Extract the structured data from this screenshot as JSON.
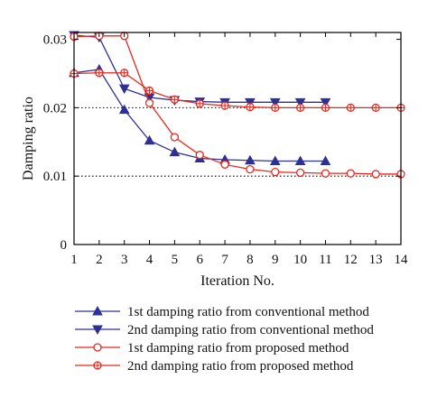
{
  "chart_data": {
    "type": "line",
    "xlabel": "Iteration No.",
    "ylabel": "Damping ratio",
    "xlim": [
      1,
      14
    ],
    "ylim": [
      0,
      0.031
    ],
    "x_ticks": [
      "1",
      "2",
      "3",
      "4",
      "5",
      "6",
      "7",
      "8",
      "9",
      "10",
      "11",
      "12",
      "13",
      "14"
    ],
    "y_ticks": [
      "0",
      "0.01",
      "0.02",
      "0.03"
    ],
    "reference_lines": [
      0.01,
      0.02
    ],
    "grid": false,
    "legend_position": "bottom",
    "colors": {
      "conventional": "#2e3192",
      "proposed": "#e8281e",
      "reference": "#000000"
    },
    "series": [
      {
        "name": "1st damping ratio from conventional method",
        "marker": "triangle-up",
        "x": [
          1,
          2,
          3,
          4,
          5,
          6,
          7,
          8,
          9,
          10,
          11
        ],
        "values": [
          0.0251,
          0.0256,
          0.0197,
          0.0152,
          0.0135,
          0.0126,
          0.0124,
          0.0123,
          0.0122,
          0.0122,
          0.0122
        ]
      },
      {
        "name": "2nd damping ratio from conventional method",
        "marker": "triangle-down",
        "x": [
          1,
          2,
          3,
          4,
          5,
          6,
          7,
          8,
          9,
          10,
          11
        ],
        "values": [
          0.0306,
          0.0303,
          0.0228,
          0.0215,
          0.0211,
          0.0209,
          0.0208,
          0.0208,
          0.0208,
          0.0208,
          0.0208
        ]
      },
      {
        "name": "1st damping ratio from proposed method",
        "marker": "circle",
        "x": [
          1,
          2,
          3,
          4,
          5,
          6,
          7,
          8,
          9,
          10,
          11,
          12,
          13,
          14
        ],
        "values": [
          0.0304,
          0.0305,
          0.0305,
          0.0207,
          0.0157,
          0.0131,
          0.0117,
          0.011,
          0.0106,
          0.0105,
          0.0104,
          0.0104,
          0.0103,
          0.0103
        ]
      },
      {
        "name": "2nd damping ratio from proposed method",
        "marker": "circle-cross",
        "x": [
          1,
          2,
          3,
          4,
          5,
          6,
          7,
          8,
          9,
          10,
          11,
          12,
          13,
          14
        ],
        "values": [
          0.025,
          0.0251,
          0.0251,
          0.0225,
          0.0212,
          0.0206,
          0.0203,
          0.0201,
          0.02,
          0.02,
          0.02,
          0.02,
          0.02,
          0.02
        ]
      }
    ]
  }
}
